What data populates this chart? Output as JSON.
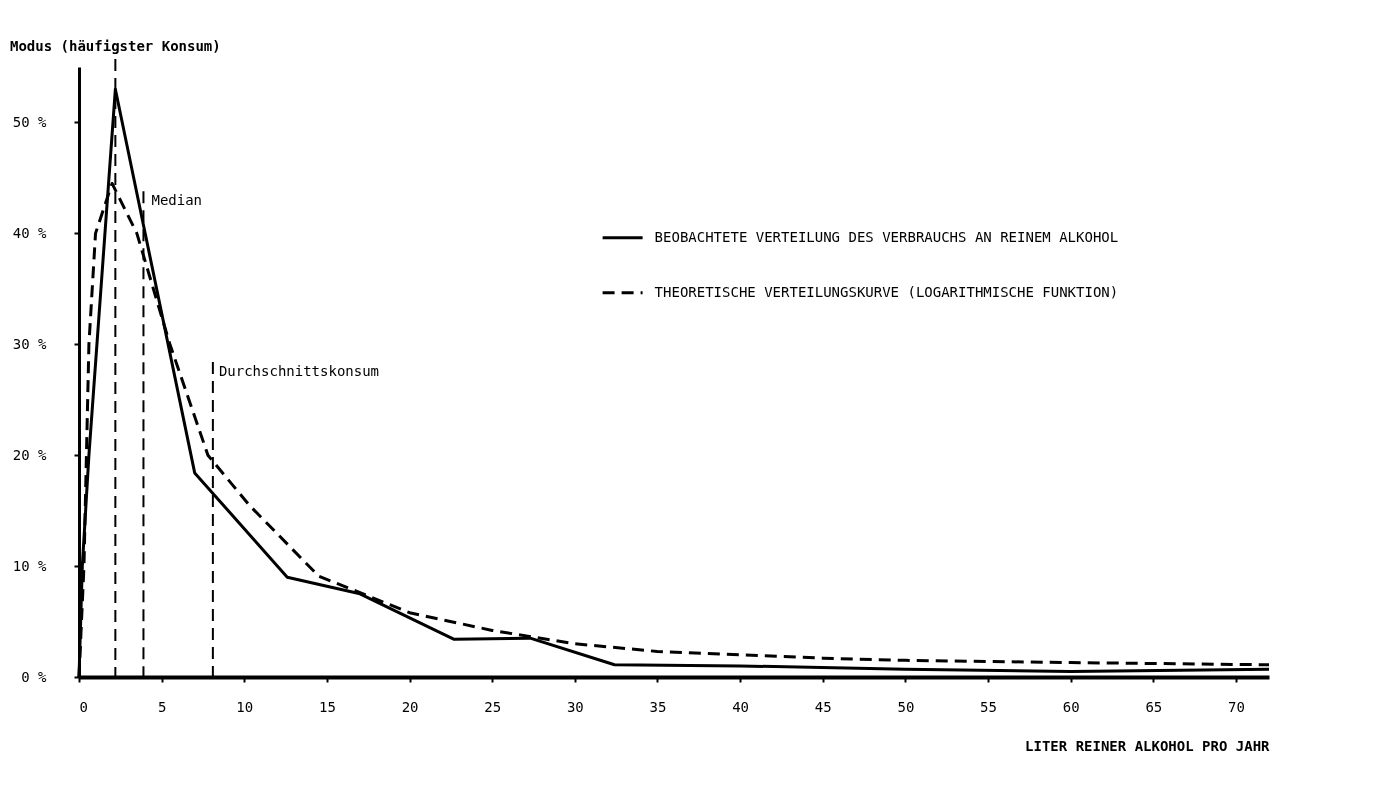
{
  "chart_data": {
    "type": "line",
    "xlabel": "LITER REINER ALKOHOL PRO JAHR",
    "xlim": [
      0,
      72
    ],
    "xticks": [
      0,
      5,
      10,
      15,
      20,
      25,
      30,
      35,
      40,
      45,
      50,
      55,
      60,
      65,
      70
    ],
    "ylim": [
      0,
      55
    ],
    "yticks": [
      {
        "value": 0,
        "label": "0 %"
      },
      {
        "value": 10,
        "label": "10 %"
      },
      {
        "value": 20,
        "label": "20 %"
      },
      {
        "value": 30,
        "label": "30 %"
      },
      {
        "value": 40,
        "label": "40 %"
      },
      {
        "value": 50,
        "label": "50 %"
      }
    ],
    "grid": false,
    "legend": "right",
    "marker": "none",
    "series": [
      {
        "name": "BEOBACHTETE VERTEILUNG DES VERBRAUCHS AN REINEM ALKOHOL",
        "color": "#000000",
        "line_style": "solid",
        "x": [
          0,
          0.2,
          0.6,
          2.2,
          7.0,
          12.6,
          17,
          22.7,
          27.3,
          32.4,
          40,
          50,
          60,
          72
        ],
        "values": [
          0,
          10,
          20,
          53,
          18.4,
          9.0,
          7.5,
          3.4,
          3.5,
          1.1,
          1.0,
          0.7,
          0.5,
          0.7
        ]
      },
      {
        "name": "THEORETISCHE VERTEILUNGSKURVE (LOGARITHMISCHE FUNKTION)",
        "color": "#000000",
        "line_style": "dashed",
        "x": [
          0,
          0.3,
          0.6,
          1.0,
          2.0,
          3.5,
          5.5,
          7.8,
          10.3,
          14.5,
          20,
          25,
          30,
          35,
          40,
          45,
          50,
          60,
          72
        ],
        "values": [
          0,
          10,
          30,
          40,
          44.5,
          40,
          30,
          20,
          15.5,
          9.1,
          5.8,
          4.2,
          3.0,
          2.3,
          2.0,
          1.7,
          1.5,
          1.3,
          1.1
        ]
      }
    ],
    "ref_lines": [
      {
        "axis": "x",
        "value": 2.2,
        "label": "Modus (häufigster Konsum)",
        "line_style": "dashed"
      },
      {
        "axis": "x",
        "value": 3.9,
        "label": "Median",
        "line_style": "dashed"
      },
      {
        "axis": "x",
        "value": 8.1,
        "label": "Durchschnittskonsum",
        "line_style": "dashed"
      }
    ]
  }
}
